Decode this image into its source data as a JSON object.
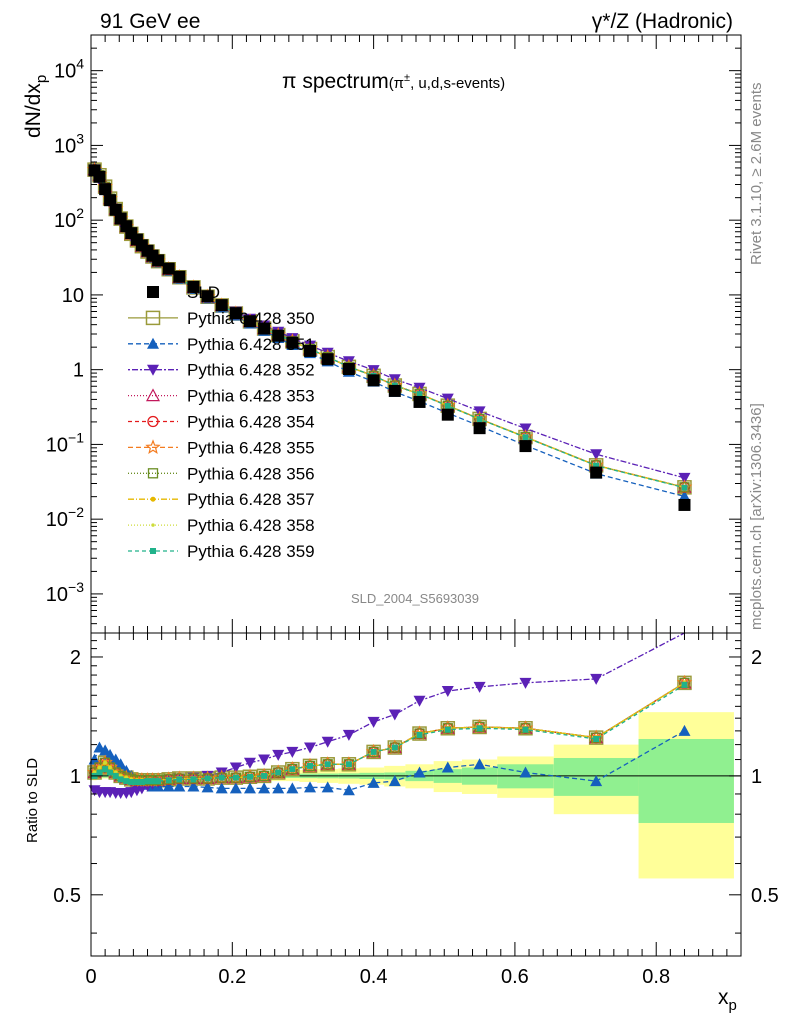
{
  "header": {
    "left": "91 GeV ee",
    "right": "γ*/Z (Hadronic)"
  },
  "side_labels": {
    "rivet": "Rivet 3.1.10, ≥ 2.6M events",
    "mcplots": "mcplots.cern.ch [arXiv:1306.3436]"
  },
  "watermark": "SLD_2004_S5693039",
  "chart_data": {
    "type": "line",
    "title": {
      "main": "π spectrum",
      "sub_prefix": "(π",
      "sub_sup": "±",
      "sub_suffix": ", u,d,s-events)"
    },
    "xlabel": "x",
    "xlabel_sub": "p",
    "ylabel": "dN/dx",
    "ylabel_sub": "p",
    "ratio_ylabel": "Ratio to SLD",
    "xlim": [
      0,
      0.92
    ],
    "ylim": [
      0.0003,
      30000
    ],
    "ylog": true,
    "ratio_ylim": [
      0.35,
      2.3
    ],
    "ratio_ylog": true,
    "x_ticks": [
      "0",
      "0.2",
      "0.4",
      "0.6",
      "0.8"
    ],
    "x_tick_values": [
      0,
      0.2,
      0.4,
      0.6,
      0.8
    ],
    "y_tick_labels": [
      {
        "base": "10",
        "exp": "-3",
        "value": 0.001
      },
      {
        "base": "10",
        "exp": "-2",
        "value": 0.01
      },
      {
        "base": "10",
        "exp": "-1",
        "value": 0.1
      },
      {
        "base": "1",
        "exp": "",
        "value": 1
      },
      {
        "base": "10",
        "exp": "",
        "value": 10
      },
      {
        "base": "10",
        "exp": "2",
        "value": 100
      },
      {
        "base": "10",
        "exp": "3",
        "value": 1000
      },
      {
        "base": "10",
        "exp": "4",
        "value": 10000
      }
    ],
    "ratio_ticks": [
      {
        "label": "0.5",
        "value": 0.5
      },
      {
        "label": "1",
        "value": 1
      },
      {
        "label": "2",
        "value": 2
      }
    ],
    "x": [
      0.005,
      0.012,
      0.02,
      0.027,
      0.035,
      0.042,
      0.05,
      0.057,
      0.065,
      0.072,
      0.08,
      0.087,
      0.095,
      0.11,
      0.125,
      0.145,
      0.165,
      0.185,
      0.205,
      0.225,
      0.245,
      0.265,
      0.285,
      0.31,
      0.335,
      0.365,
      0.4,
      0.43,
      0.465,
      0.505,
      0.55,
      0.615,
      0.715,
      0.84
    ],
    "data": {
      "name": "SLD",
      "values": [
        465,
        380,
        260,
        185,
        138,
        105,
        83,
        67,
        55,
        46,
        39,
        33.5,
        29,
        22.5,
        17.5,
        12.8,
        9.6,
        7.3,
        5.7,
        4.45,
        3.55,
        2.85,
        2.3,
        1.78,
        1.38,
        1.02,
        0.72,
        0.52,
        0.37,
        0.25,
        0.165,
        0.095,
        0.042,
        0.0155
      ],
      "ratio_x": [
        0.005,
        0.012,
        0.02,
        0.027,
        0.035,
        0.042,
        0.05,
        0.057,
        0.065,
        0.072,
        0.08,
        0.087,
        0.095,
        0.11,
        0.125,
        0.145,
        0.165,
        0.185,
        0.205,
        0.225,
        0.245,
        0.265,
        0.285,
        0.31,
        0.335,
        0.365,
        0.4,
        0.43,
        0.465,
        0.505,
        0.55,
        0.615,
        0.715,
        0.84
      ],
      "bin_edges": [
        0,
        0.008,
        0.016,
        0.024,
        0.031,
        0.039,
        0.046,
        0.054,
        0.061,
        0.069,
        0.076,
        0.084,
        0.091,
        0.1,
        0.12,
        0.135,
        0.155,
        0.175,
        0.195,
        0.215,
        0.235,
        0.255,
        0.275,
        0.295,
        0.32,
        0.35,
        0.38,
        0.415,
        0.445,
        0.485,
        0.525,
        0.575,
        0.655,
        0.775,
        0.91
      ],
      "band_stat": [
        0.01,
        0.01,
        0.01,
        0.01,
        0.01,
        0.01,
        0.01,
        0.01,
        0.01,
        0.01,
        0.01,
        0.01,
        0.01,
        0.01,
        0.01,
        0.01,
        0.01,
        0.01,
        0.01,
        0.01,
        0.012,
        0.012,
        0.012,
        0.013,
        0.014,
        0.015,
        0.018,
        0.02,
        0.03,
        0.04,
        0.05,
        0.07,
        0.11,
        0.24
      ],
      "band_tot": [
        0.025,
        0.02,
        0.015,
        0.015,
        0.015,
        0.015,
        0.015,
        0.015,
        0.015,
        0.015,
        0.015,
        0.015,
        0.015,
        0.015,
        0.015,
        0.015,
        0.015,
        0.015,
        0.02,
        0.02,
        0.025,
        0.03,
        0.03,
        0.035,
        0.04,
        0.045,
        0.05,
        0.06,
        0.07,
        0.09,
        0.1,
        0.12,
        0.2,
        0.45
      ]
    },
    "series": [
      {
        "name": "Pythia 6.428 350",
        "color": "#9a9a3a",
        "marker": "square-open",
        "dash": "",
        "ratio": [
          1.02,
          1.05,
          1.08,
          1.05,
          1.02,
          1.0,
          0.99,
          0.98,
          0.975,
          0.975,
          0.975,
          0.975,
          0.975,
          0.98,
          0.985,
          0.985,
          0.985,
          0.99,
          0.99,
          0.995,
          1.0,
          1.02,
          1.04,
          1.06,
          1.07,
          1.07,
          1.15,
          1.18,
          1.28,
          1.32,
          1.33,
          1.32,
          1.25,
          1.72
        ]
      },
      {
        "name": "Pythia 6.428 351",
        "color": "#1560bd",
        "marker": "triangle-up",
        "dash": "5,3",
        "ratio": [
          1.1,
          1.18,
          1.16,
          1.13,
          1.1,
          1.07,
          1.03,
          1.0,
          0.98,
          0.96,
          0.95,
          0.94,
          0.94,
          0.94,
          0.94,
          0.94,
          0.935,
          0.93,
          0.93,
          0.93,
          0.93,
          0.93,
          0.93,
          0.935,
          0.935,
          0.92,
          0.96,
          0.97,
          1.02,
          1.05,
          1.07,
          1.02,
          0.97,
          1.3
        ]
      },
      {
        "name": "Pythia 6.428 352",
        "color": "#5b21b6",
        "marker": "triangle-down",
        "dash": "2,2,6,2",
        "ratio": [
          0.92,
          0.91,
          0.91,
          0.91,
          0.905,
          0.905,
          0.905,
          0.91,
          0.92,
          0.93,
          0.945,
          0.955,
          0.965,
          0.975,
          0.985,
          0.99,
          1.0,
          1.02,
          1.05,
          1.08,
          1.1,
          1.13,
          1.15,
          1.18,
          1.22,
          1.27,
          1.37,
          1.43,
          1.55,
          1.64,
          1.68,
          1.72,
          1.76,
          2.3
        ]
      },
      {
        "name": "Pythia 6.428 353",
        "color": "#c2185b",
        "marker": "triangle-open",
        "dash": "1,2",
        "ratio": [
          1.02,
          1.05,
          1.08,
          1.05,
          1.02,
          1.0,
          0.99,
          0.98,
          0.975,
          0.975,
          0.975,
          0.975,
          0.975,
          0.98,
          0.985,
          0.985,
          0.985,
          0.99,
          0.99,
          0.995,
          1.0,
          1.02,
          1.04,
          1.06,
          1.07,
          1.07,
          1.15,
          1.18,
          1.28,
          1.32,
          1.33,
          1.32,
          1.25,
          1.72
        ]
      },
      {
        "name": "Pythia 6.428 354",
        "color": "#e31a1c",
        "marker": "circle-open",
        "dash": "4,3",
        "ratio": [
          1.02,
          1.05,
          1.08,
          1.05,
          1.02,
          1.0,
          0.99,
          0.98,
          0.975,
          0.975,
          0.975,
          0.975,
          0.975,
          0.98,
          0.985,
          0.985,
          0.985,
          0.99,
          0.99,
          0.995,
          1.0,
          1.02,
          1.04,
          1.06,
          1.07,
          1.07,
          1.15,
          1.18,
          1.28,
          1.32,
          1.33,
          1.32,
          1.25,
          1.72
        ]
      },
      {
        "name": "Pythia 6.428 355",
        "color": "#f47c20",
        "marker": "star-open",
        "dash": "5,3",
        "ratio": [
          1.02,
          1.05,
          1.08,
          1.05,
          1.02,
          1.0,
          0.99,
          0.98,
          0.975,
          0.975,
          0.975,
          0.975,
          0.975,
          0.98,
          0.985,
          0.985,
          0.985,
          0.99,
          0.99,
          0.995,
          1.0,
          1.02,
          1.04,
          1.06,
          1.07,
          1.07,
          1.15,
          1.18,
          1.28,
          1.32,
          1.33,
          1.32,
          1.25,
          1.72
        ]
      },
      {
        "name": "Pythia 6.428 356",
        "color": "#6b8e23",
        "marker": "square-open-small",
        "dash": "1,2",
        "ratio": [
          1.02,
          1.05,
          1.08,
          1.05,
          1.02,
          1.0,
          0.99,
          0.98,
          0.975,
          0.975,
          0.975,
          0.975,
          0.975,
          0.98,
          0.985,
          0.985,
          0.985,
          0.99,
          0.99,
          0.995,
          1.0,
          1.02,
          1.04,
          1.06,
          1.07,
          1.07,
          1.15,
          1.18,
          1.28,
          1.32,
          1.33,
          1.32,
          1.25,
          1.72
        ]
      },
      {
        "name": "Pythia 6.428 357",
        "color": "#e6b800",
        "marker": "dot",
        "dash": "6,2,1,2",
        "ratio": [
          1.02,
          1.05,
          1.08,
          1.05,
          1.02,
          1.0,
          0.99,
          0.98,
          0.975,
          0.975,
          0.975,
          0.975,
          0.975,
          0.98,
          0.985,
          0.985,
          0.985,
          0.99,
          0.99,
          0.995,
          1.0,
          1.02,
          1.04,
          1.06,
          1.07,
          1.07,
          1.15,
          1.18,
          1.28,
          1.32,
          1.33,
          1.32,
          1.25,
          1.72
        ]
      },
      {
        "name": "Pythia 6.428 358",
        "color": "#cddc39",
        "marker": "dot-small",
        "dash": "1,2",
        "ratio": [
          1.02,
          1.05,
          1.08,
          1.05,
          1.02,
          1.0,
          0.99,
          0.98,
          0.975,
          0.975,
          0.975,
          0.975,
          0.975,
          0.98,
          0.985,
          0.985,
          0.985,
          0.99,
          0.99,
          0.995,
          1.0,
          1.02,
          1.04,
          1.06,
          1.07,
          1.07,
          1.15,
          1.18,
          1.28,
          1.32,
          1.33,
          1.32,
          1.25,
          1.72
        ]
      },
      {
        "name": "Pythia 6.428 359",
        "color": "#20b28a",
        "marker": "square-small",
        "dash": "4,3",
        "ratio": [
          1.0,
          1.02,
          1.04,
          1.02,
          1.0,
          0.98,
          0.97,
          0.965,
          0.965,
          0.965,
          0.97,
          0.97,
          0.97,
          0.975,
          0.98,
          0.98,
          0.985,
          0.99,
          0.99,
          0.995,
          1.0,
          1.02,
          1.04,
          1.06,
          1.07,
          1.07,
          1.15,
          1.18,
          1.27,
          1.31,
          1.32,
          1.31,
          1.24,
          1.7
        ]
      }
    ],
    "legend_placement": "left-middle of upper panel"
  }
}
